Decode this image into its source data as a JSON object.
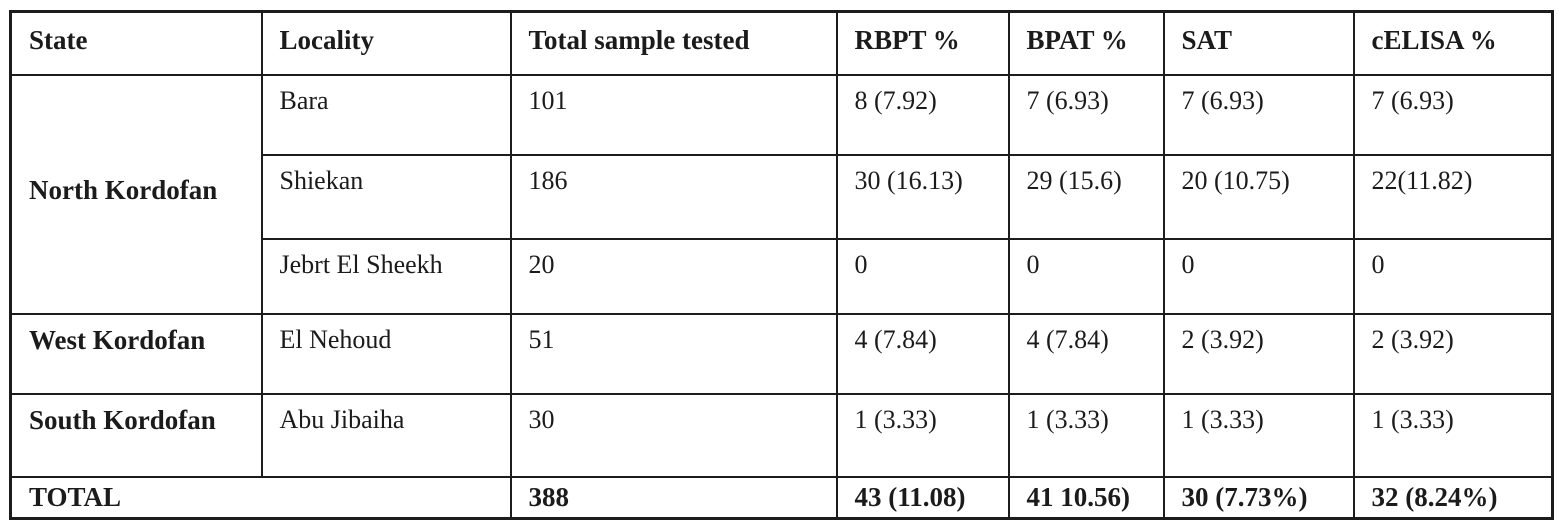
{
  "table": {
    "headers": {
      "state": "State",
      "locality": "Locality",
      "total_sample_tested": "Total sample tested",
      "rbpt": "RBPT %",
      "bpat": "BPAT %",
      "sat": "SAT",
      "celisa": "cELISA %"
    },
    "rows": [
      {
        "state": "North Kordofan",
        "locality": "Bara",
        "total": "101",
        "rbpt": "8 (7.92)",
        "bpat": "7 (6.93)",
        "sat": "7 (6.93)",
        "celisa": "7 (6.93)"
      },
      {
        "state": "",
        "locality": "Shiekan",
        "total": "186",
        "rbpt": "30 (16.13)",
        "bpat": "29 (15.6)",
        "sat": "20 (10.75)",
        "celisa": "22(11.82)"
      },
      {
        "state": "",
        "locality": "Jebrt El Sheekh",
        "total": "20",
        "rbpt": "0",
        "bpat": "0",
        "sat": "0",
        "celisa": "0"
      },
      {
        "state": "West Kordofan",
        "locality": "El Nehoud",
        "total": "51",
        "rbpt": "4 (7.84)",
        "bpat": "4 (7.84)",
        "sat": "2 (3.92)",
        "celisa": "2 (3.92)"
      },
      {
        "state": "South Kordofan",
        "locality": "Abu Jibaiha",
        "total": "30",
        "rbpt": "1 (3.33)",
        "bpat": "1 (3.33)",
        "sat": "1 (3.33)",
        "celisa": "1 (3.33)"
      }
    ],
    "total_row": {
      "label": "TOTAL",
      "total": "388",
      "rbpt": "43 (11.08)",
      "bpat": "41 10.56)",
      "sat": "30 (7.73%)",
      "celisa": "32 (8.24%)"
    }
  }
}
